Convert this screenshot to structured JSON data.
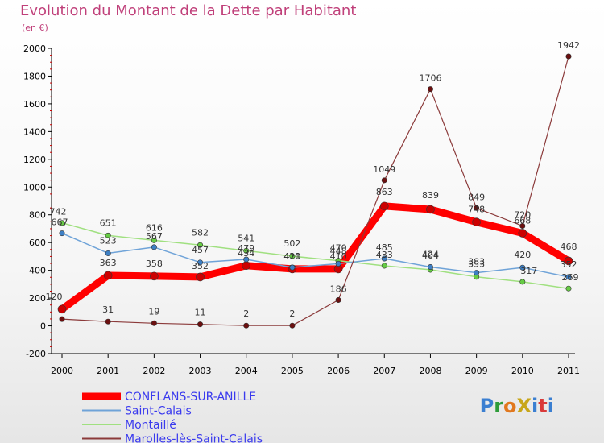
{
  "page": {
    "title": "Evolution du Montant de la Dette par Habitant",
    "subtitle": "(en €)",
    "logo": "ProXiti"
  },
  "chart_data": {
    "type": "line",
    "title": "Evolution du Montant de la Dette par Habitant",
    "subtitle": "(en €)",
    "xlabel": "",
    "ylabel": "",
    "x": [
      2000,
      2001,
      2002,
      2003,
      2004,
      2005,
      2006,
      2007,
      2008,
      2009,
      2010,
      2011
    ],
    "ylim": [
      -200,
      2000
    ],
    "yticks": [
      -200,
      0,
      200,
      400,
      600,
      800,
      1000,
      1200,
      1400,
      1600,
      1800,
      2000
    ],
    "grid": false,
    "legend": "bottom-left",
    "series": [
      {
        "name": "CONFLANS-SUR-ANILLE",
        "color": "#ff0000",
        "dot": "#cc0000",
        "labelColor": "#3a3aee",
        "width": 9,
        "values": [
          120,
          363,
          358,
          352,
          434,
          410,
          410,
          863,
          839,
          748,
          668,
          468
        ]
      },
      {
        "name": "Saint-Calais",
        "color": "#6fa3d8",
        "dot": "#3d7fc4",
        "labelColor": "#3a3aee",
        "width": 1.5,
        "values": [
          667,
          523,
          567,
          457,
          479,
          421,
          448,
          485,
          424,
          383,
          420,
          352
        ]
      },
      {
        "name": "Montaillé",
        "color": "#a0e080",
        "dot": "#66cc44",
        "labelColor": "#3a3aee",
        "width": 1.5,
        "values": [
          742,
          651,
          616,
          582,
          541,
          502,
          470,
          433,
          404,
          353,
          317,
          269
        ]
      },
      {
        "name": "Marolles-lès-Saint-Calais",
        "color": "#8b3a3a",
        "dot": "#6b0f0f",
        "labelColor": "#3a3aee",
        "width": 1.2,
        "values": [
          49,
          31,
          19,
          11,
          2,
          2,
          186,
          1049,
          1706,
          849,
          720,
          1942
        ]
      }
    ],
    "labels": [
      {
        "series": 0,
        "i": 0,
        "text": "120",
        "dx": -10,
        "dy": -12
      },
      {
        "series": 0,
        "i": 1,
        "text": "363",
        "dx": 0,
        "dy": -12
      },
      {
        "series": 0,
        "i": 2,
        "text": "358",
        "dx": 0,
        "dy": -12
      },
      {
        "series": 0,
        "i": 3,
        "text": "352",
        "dx": 0,
        "dy": -10
      },
      {
        "series": 0,
        "i": 4,
        "text": "434",
        "dx": 0,
        "dy": -12
      },
      {
        "series": 0,
        "i": 5,
        "text": "410",
        "dx": 0,
        "dy": -12
      },
      {
        "series": 0,
        "i": 6,
        "text": "410",
        "dx": 0,
        "dy": -12
      },
      {
        "series": 0,
        "i": 7,
        "text": "863",
        "dx": 0,
        "dy": -14
      },
      {
        "series": 0,
        "i": 8,
        "text": "839",
        "dx": 0,
        "dy": -14
      },
      {
        "series": 0,
        "i": 9,
        "text": "748",
        "dx": 0,
        "dy": -12
      },
      {
        "series": 0,
        "i": 10,
        "text": "668",
        "dx": 0,
        "dy": -12
      },
      {
        "series": 0,
        "i": 11,
        "text": "468",
        "dx": 0,
        "dy": -14
      },
      {
        "series": 1,
        "i": 0,
        "text": "667",
        "dx": -3,
        "dy": -10
      },
      {
        "series": 1,
        "i": 1,
        "text": "523",
        "dx": 0,
        "dy": -12
      },
      {
        "series": 1,
        "i": 2,
        "text": "567",
        "dx": 0,
        "dy": -10
      },
      {
        "series": 1,
        "i": 3,
        "text": "457",
        "dx": 0,
        "dy": -12
      },
      {
        "series": 1,
        "i": 4,
        "text": "479",
        "dx": 0,
        "dy": -10
      },
      {
        "series": 1,
        "i": 5,
        "text": "421",
        "dx": 0,
        "dy": -10
      },
      {
        "series": 1,
        "i": 6,
        "text": "448",
        "dx": 0,
        "dy": -12
      },
      {
        "series": 1,
        "i": 7,
        "text": "485",
        "dx": 0,
        "dy": -10
      },
      {
        "series": 1,
        "i": 8,
        "text": "424",
        "dx": 0,
        "dy": -12
      },
      {
        "series": 1,
        "i": 9,
        "text": "383",
        "dx": 0,
        "dy": -10
      },
      {
        "series": 1,
        "i": 10,
        "text": "420",
        "dx": 0,
        "dy": -12
      },
      {
        "series": 1,
        "i": 11,
        "text": "352",
        "dx": 0,
        "dy": -12
      },
      {
        "series": 2,
        "i": 0,
        "text": "742",
        "dx": -5,
        "dy": -10
      },
      {
        "series": 2,
        "i": 1,
        "text": "651",
        "dx": 0,
        "dy": -12
      },
      {
        "series": 2,
        "i": 2,
        "text": "616",
        "dx": 0,
        "dy": -12
      },
      {
        "series": 2,
        "i": 3,
        "text": "582",
        "dx": 0,
        "dy": -12
      },
      {
        "series": 2,
        "i": 4,
        "text": "541",
        "dx": 0,
        "dy": -12
      },
      {
        "series": 2,
        "i": 5,
        "text": "502",
        "dx": 0,
        "dy": -12
      },
      {
        "series": 2,
        "i": 6,
        "text": "470",
        "dx": 0,
        "dy": -12
      },
      {
        "series": 2,
        "i": 7,
        "text": "433",
        "dx": 0,
        "dy": -10
      },
      {
        "series": 2,
        "i": 8,
        "text": "404",
        "dx": 0,
        "dy": -14
      },
      {
        "series": 2,
        "i": 9,
        "text": "353",
        "dx": 0,
        "dy": -12
      },
      {
        "series": 2,
        "i": 10,
        "text": "317",
        "dx": 8,
        "dy": -10
      },
      {
        "series": 2,
        "i": 11,
        "text": "269",
        "dx": 2,
        "dy": -10
      },
      {
        "series": 3,
        "i": 1,
        "text": "31",
        "dx": 0,
        "dy": -11
      },
      {
        "series": 3,
        "i": 2,
        "text": "19",
        "dx": 0,
        "dy": -11
      },
      {
        "series": 3,
        "i": 3,
        "text": "11",
        "dx": 0,
        "dy": -11
      },
      {
        "series": 3,
        "i": 4,
        "text": "2",
        "dx": 0,
        "dy": -11
      },
      {
        "series": 3,
        "i": 5,
        "text": "2",
        "dx": 0,
        "dy": -11
      },
      {
        "series": 3,
        "i": 6,
        "text": "186",
        "dx": 0,
        "dy": -10
      },
      {
        "series": 3,
        "i": 7,
        "text": "1049",
        "dx": 0,
        "dy": -10
      },
      {
        "series": 3,
        "i": 8,
        "text": "1706",
        "dx": 0,
        "dy": -10
      },
      {
        "series": 3,
        "i": 9,
        "text": "849",
        "dx": 0,
        "dy": -10
      },
      {
        "series": 3,
        "i": 10,
        "text": "720",
        "dx": 0,
        "dy": -10
      },
      {
        "series": 3,
        "i": 11,
        "text": "1942",
        "dx": 0,
        "dy": -10
      }
    ]
  }
}
